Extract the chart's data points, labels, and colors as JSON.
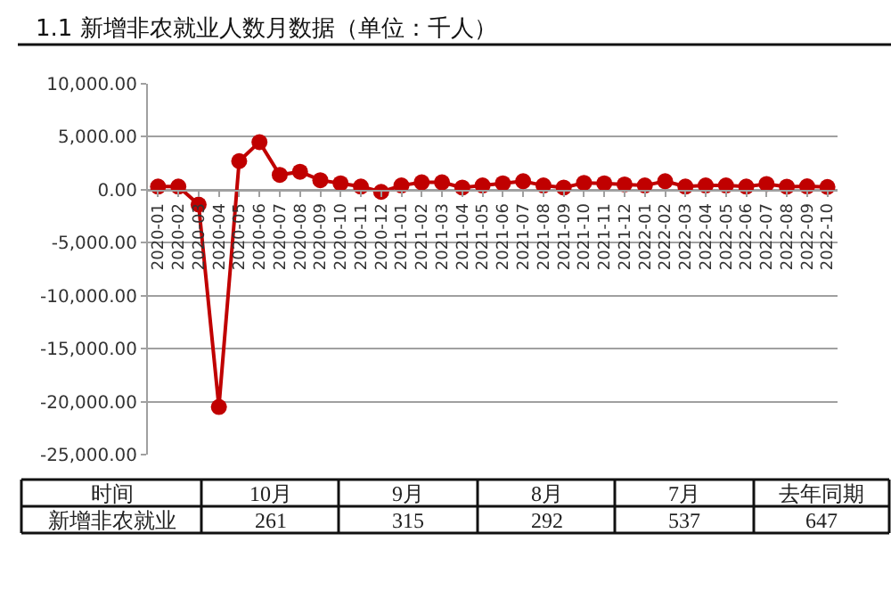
{
  "chart_data": {
    "type": "line",
    "title": "1.1 新增非农就业人数月数据（单位：千人）",
    "categories": [
      "2020-01",
      "2020-02",
      "2020-03",
      "2020-04",
      "2020-05",
      "2020-06",
      "2020-07",
      "2020-08",
      "2020-09",
      "2020-10",
      "2020-11",
      "2020-12",
      "2021-01",
      "2021-02",
      "2021-03",
      "2021-04",
      "2021-05",
      "2021-06",
      "2021-07",
      "2021-08",
      "2021-09",
      "2021-10",
      "2021-11",
      "2021-12",
      "2022-01",
      "2022-02",
      "2022-03",
      "2022-04",
      "2022-05",
      "2022-06",
      "2022-07",
      "2022-08",
      "2022-09",
      "2022-10"
    ],
    "series": [
      {
        "color": "#c00000",
        "values": [
          300,
          300,
          -1400,
          -20500,
          2700,
          4500,
          1400,
          1700,
          900,
          600,
          300,
          -200,
          400,
          700,
          700,
          200,
          400,
          600,
          800,
          400,
          200,
          647,
          600,
          500,
          400,
          800,
          300,
          400,
          400,
          300,
          537,
          292,
          315,
          261
        ]
      }
    ],
    "ylim": [
      -25000,
      10000
    ],
    "yticks": [
      {
        "value": -25000,
        "label": "-25,000.00"
      },
      {
        "value": -20000,
        "label": "-20,000.00"
      },
      {
        "value": -15000,
        "label": "-15,000.00"
      },
      {
        "value": -10000,
        "label": "-10,000.00"
      },
      {
        "value": -5000,
        "label": "-5,000.00"
      },
      {
        "value": 0,
        "label": "0.00"
      },
      {
        "value": 5000,
        "label": "5,000.00"
      },
      {
        "value": 10000,
        "label": "10,000.00"
      }
    ],
    "grid": "y",
    "legend": false,
    "marker": "circle",
    "line_style": "solid",
    "annotations": [
      "时间",
      "10月",
      "9月",
      "8月",
      "7月",
      "去年同期",
      "新增非农就业",
      "261",
      "315",
      "292",
      "537",
      "647"
    ]
  }
}
